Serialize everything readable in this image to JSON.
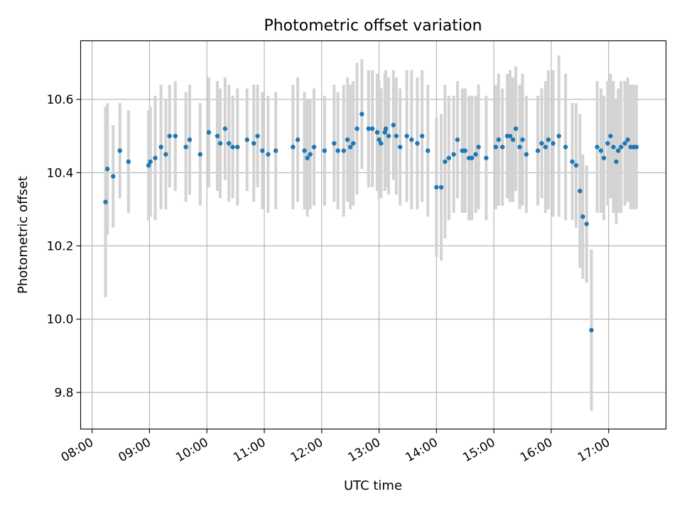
{
  "chart_data": {
    "type": "scatter",
    "title": "Photometric offset variation",
    "xlabel": "UTC time",
    "ylabel": "Photometric offset",
    "xlim_hours": [
      7.8,
      18.0
    ],
    "ylim": [
      9.7,
      10.76
    ],
    "x_ticks": [
      {
        "value": 8,
        "label": "08:00"
      },
      {
        "value": 9,
        "label": "09:00"
      },
      {
        "value": 10,
        "label": "10:00"
      },
      {
        "value": 11,
        "label": "11:00"
      },
      {
        "value": 12,
        "label": "12:00"
      },
      {
        "value": 13,
        "label": "13:00"
      },
      {
        "value": 14,
        "label": "14:00"
      },
      {
        "value": 15,
        "label": "15:00"
      },
      {
        "value": 16,
        "label": "16:00"
      },
      {
        "value": 17,
        "label": "17:00"
      }
    ],
    "y_ticks": [
      {
        "value": 9.8,
        "label": "9.8"
      },
      {
        "value": 10.0,
        "label": "10.0"
      },
      {
        "value": 10.2,
        "label": "10.2"
      },
      {
        "value": 10.4,
        "label": "10.4"
      },
      {
        "value": 10.6,
        "label": "10.6"
      }
    ],
    "grid": true,
    "colors": {
      "marker": "#1f77b4",
      "errorbar": "#d3d3d3"
    },
    "series": [
      {
        "x": [
          "08:14",
          "08:16",
          "08:22",
          "08:29",
          "08:38",
          "08:59",
          "09:01",
          "09:06",
          "09:12",
          "09:17",
          "09:21",
          "09:27",
          "09:38",
          "09:42",
          "09:53",
          "10:02",
          "10:11",
          "10:14",
          "10:19",
          "10:23",
          "10:27",
          "10:32",
          "10:42",
          "10:49",
          "10:53",
          "10:58",
          "11:04",
          "11:12",
          "11:30",
          "11:35",
          "11:42",
          "11:45",
          "11:48",
          "11:52",
          "12:03",
          "12:13",
          "12:17",
          "12:23",
          "12:27",
          "12:30",
          "12:33",
          "12:37",
          "12:42",
          "12:49",
          "12:53",
          "12:58",
          "13:00",
          "13:02",
          "13:06",
          "13:07",
          "13:10",
          "13:15",
          "13:18",
          "13:22",
          "13:29",
          "13:34",
          "13:40",
          "13:45",
          "13:51",
          "14:00",
          "14:05",
          "14:09",
          "14:13",
          "14:18",
          "14:22",
          "14:27",
          "14:30",
          "14:34",
          "14:37",
          "14:41",
          "14:44",
          "14:52",
          "15:02",
          "15:05",
          "15:09",
          "15:14",
          "15:17",
          "15:20",
          "15:23",
          "15:27",
          "15:30",
          "15:34",
          "15:46",
          "15:50",
          "15:54",
          "15:57",
          "16:02",
          "16:08",
          "16:15",
          "16:22",
          "16:26",
          "16:30",
          "16:33",
          "16:37",
          "16:42",
          "16:48",
          "16:52",
          "16:55",
          "16:59",
          "17:02",
          "17:05",
          "17:08",
          "17:10",
          "17:13",
          "17:17",
          "17:20",
          "17:23",
          "17:26",
          "17:29"
        ],
        "y": [
          10.32,
          10.41,
          10.39,
          10.46,
          10.43,
          10.42,
          10.43,
          10.44,
          10.47,
          10.45,
          10.5,
          10.5,
          10.47,
          10.49,
          10.45,
          10.51,
          10.5,
          10.48,
          10.52,
          10.48,
          10.47,
          10.47,
          10.49,
          10.48,
          10.5,
          10.46,
          10.45,
          10.46,
          10.47,
          10.49,
          10.46,
          10.44,
          10.45,
          10.47,
          10.46,
          10.48,
          10.46,
          10.46,
          10.49,
          10.47,
          10.48,
          10.52,
          10.56,
          10.52,
          10.52,
          10.51,
          10.49,
          10.48,
          10.51,
          10.52,
          10.5,
          10.53,
          10.5,
          10.47,
          10.5,
          10.49,
          10.48,
          10.5,
          10.46,
          10.36,
          10.36,
          10.43,
          10.44,
          10.45,
          10.49,
          10.46,
          10.46,
          10.44,
          10.44,
          10.45,
          10.47,
          10.44,
          10.47,
          10.49,
          10.47,
          10.5,
          10.5,
          10.49,
          10.52,
          10.47,
          10.49,
          10.45,
          10.46,
          10.48,
          10.47,
          10.49,
          10.48,
          10.5,
          10.47,
          10.43,
          10.42,
          10.35,
          10.28,
          10.26,
          9.97,
          10.47,
          10.46,
          10.44,
          10.48,
          10.5,
          10.47,
          10.43,
          10.46,
          10.47,
          10.48,
          10.49,
          10.47,
          10.47,
          10.47
        ],
        "yerr": [
          0.26,
          0.18,
          0.14,
          0.13,
          0.14,
          0.15,
          0.15,
          0.17,
          0.17,
          0.15,
          0.14,
          0.15,
          0.15,
          0.15,
          0.14,
          0.15,
          0.15,
          0.15,
          0.14,
          0.16,
          0.14,
          0.16,
          0.14,
          0.16,
          0.14,
          0.16,
          0.16,
          0.16,
          0.17,
          0.17,
          0.16,
          0.16,
          0.15,
          0.16,
          0.15,
          0.16,
          0.16,
          0.18,
          0.17,
          0.17,
          0.17,
          0.18,
          0.15,
          0.16,
          0.16,
          0.16,
          0.16,
          0.15,
          0.16,
          0.16,
          0.16,
          0.15,
          0.16,
          0.16,
          0.18,
          0.19,
          0.18,
          0.18,
          0.18,
          0.19,
          0.2,
          0.21,
          0.17,
          0.16,
          0.16,
          0.17,
          0.17,
          0.17,
          0.17,
          0.16,
          0.17,
          0.17,
          0.17,
          0.18,
          0.16,
          0.17,
          0.18,
          0.17,
          0.17,
          0.17,
          0.18,
          0.16,
          0.15,
          0.15,
          0.18,
          0.19,
          0.2,
          0.22,
          0.2,
          0.16,
          0.17,
          0.21,
          0.17,
          0.16,
          0.22,
          0.18,
          0.17,
          0.17,
          0.17,
          0.17,
          0.18,
          0.17,
          0.17,
          0.18,
          0.17,
          0.17,
          0.17,
          0.17,
          0.17
        ]
      }
    ]
  }
}
